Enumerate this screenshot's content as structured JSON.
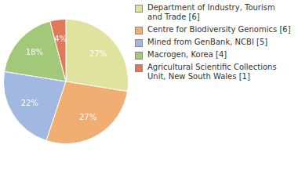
{
  "chart_data": {
    "type": "pie",
    "categories": [
      "Department of Industry, Tourism and Trade [6]",
      "Centre for Biodiversity Genomics [6]",
      "Mined from GenBank, NCBI [5]",
      "Macrogen, Korea [4]",
      "Agricultural Scientific Collections Unit, New South Wales [1]"
    ],
    "values": [
      27,
      27,
      22,
      18,
      4
    ],
    "value_labels": [
      "27%",
      "27%",
      "22%",
      "18%",
      "4%"
    ],
    "colors": [
      "#dfe39d",
      "#f0ae72",
      "#a1b9e1",
      "#a2c87a",
      "#e0785a"
    ],
    "data_labels": true,
    "legend": "right"
  }
}
